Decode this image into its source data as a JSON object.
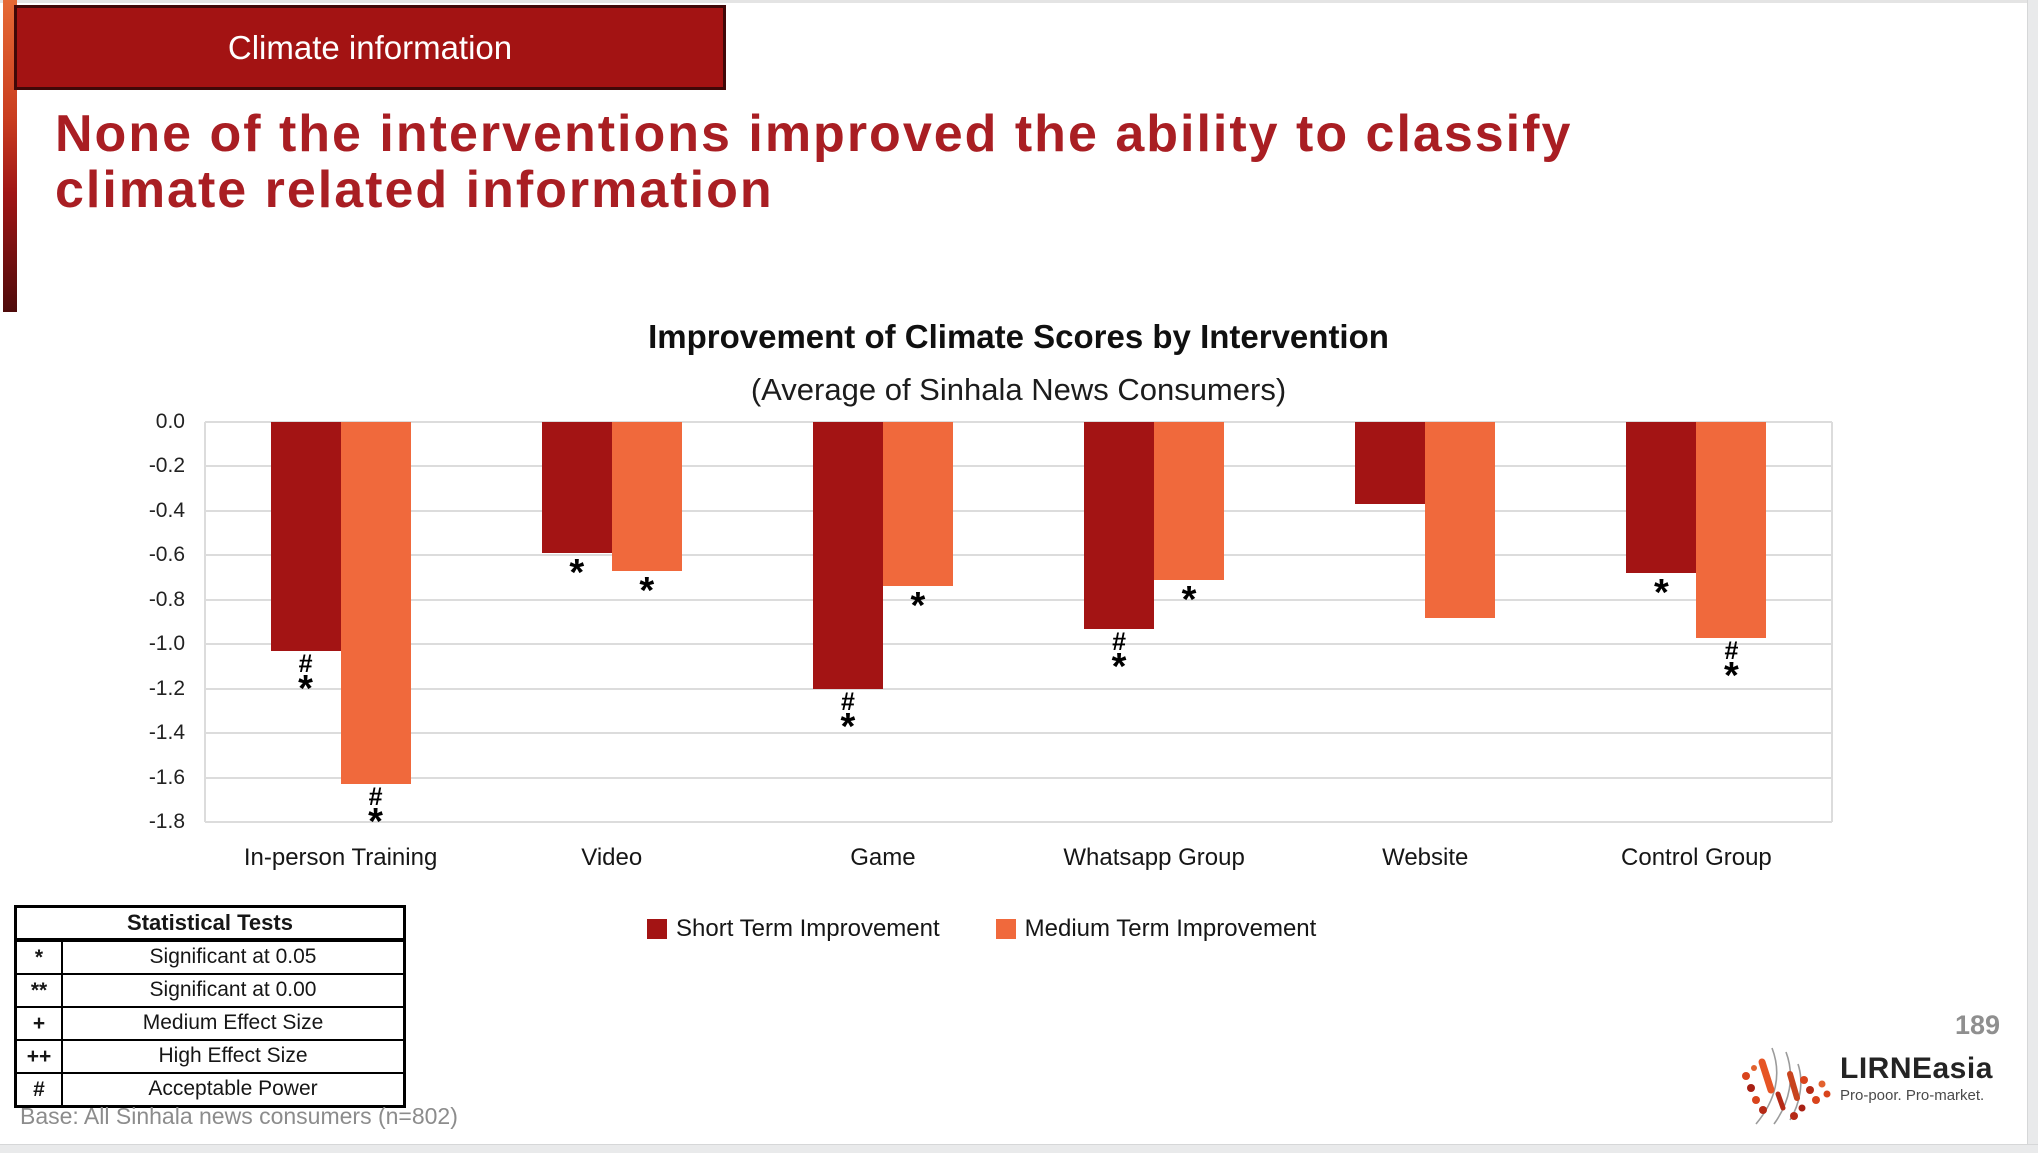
{
  "slide": {
    "tag": "Climate information",
    "title_lines": [
      "None of the interventions improved the ability to classify",
      "climate related information"
    ],
    "base_note": "Base: All Sinhala news consumers (n=802)",
    "page_number": "189"
  },
  "colors": {
    "short_term": "#A31414",
    "medium_term": "#F0693C",
    "tag_background": "#A31313",
    "title_text": "#A91E23",
    "gridline": "#DCDCDC"
  },
  "chart_data": {
    "type": "bar",
    "title": "Improvement of Climate Scores by Intervention",
    "subtitle": "(Average of Sinhala News Consumers)",
    "categories": [
      "In-person Training",
      "Video",
      "Game",
      "Whatsapp Group",
      "Website",
      "Control Group"
    ],
    "series": [
      {
        "name": "Short Term Improvement",
        "color": "#A31414",
        "values": [
          -1.03,
          -0.59,
          -1.2,
          -0.93,
          -0.37,
          -0.68
        ],
        "markers": [
          [
            "#",
            "*"
          ],
          [
            "*"
          ],
          [
            "#",
            "*"
          ],
          [
            "#",
            "*"
          ],
          [],
          [
            "*"
          ]
        ]
      },
      {
        "name": "Medium Term Improvement",
        "color": "#F0693C",
        "values": [
          -1.63,
          -0.67,
          -0.74,
          -0.71,
          -0.88,
          -0.97
        ],
        "markers": [
          [
            "#",
            "*"
          ],
          [
            "*"
          ],
          [
            "*"
          ],
          [
            "*"
          ],
          [],
          [
            "#",
            "*"
          ]
        ]
      }
    ],
    "ylim": [
      0,
      -1.8
    ],
    "yticks": [
      "0.0",
      "-0.2",
      "-0.4",
      "-0.6",
      "-0.8",
      "-1.0",
      "-1.2",
      "-1.4",
      "-1.6",
      "-1.8"
    ],
    "grid": true,
    "legend_position": "bottom"
  },
  "stats_table": {
    "header": "Statistical Tests",
    "rows": [
      {
        "symbol": "*",
        "label": "Significant at 0.05"
      },
      {
        "symbol": "**",
        "label": "Significant at 0.00"
      },
      {
        "symbol": "+",
        "label": "Medium Effect Size"
      },
      {
        "symbol": "++",
        "label": "High Effect Size"
      },
      {
        "symbol": "#",
        "label": "Acceptable Power"
      }
    ]
  },
  "logo": {
    "name": "LIRNEasia",
    "tagline": "Pro-poor. Pro-market."
  }
}
